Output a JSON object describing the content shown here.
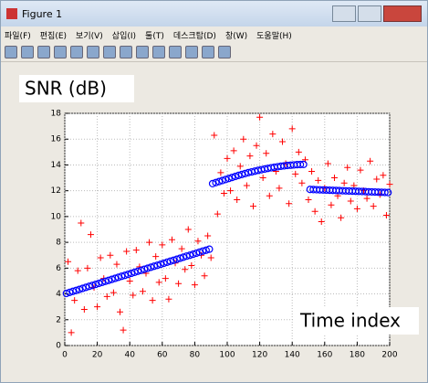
{
  "window": {
    "title": "Figure 1",
    "menu": [
      "파일(F)",
      "편집(E)",
      "보기(V)",
      "삽입(I)",
      "툴(T)",
      "데스크탑(D)",
      "창(W)",
      "도움말(H)"
    ]
  },
  "chart_data": {
    "type": "scatter",
    "annotations": [
      "SNR (dB)",
      "Time index"
    ],
    "xlim": [
      0,
      200
    ],
    "xticks": [
      0,
      20,
      40,
      60,
      80,
      100,
      120,
      140,
      160,
      180,
      200
    ],
    "ylim": [
      0,
      18
    ],
    "yticks": [
      0,
      2,
      4,
      6,
      8,
      10,
      12,
      14,
      16,
      18
    ],
    "grid": true,
    "series": [
      {
        "color": "#ff0000",
        "marker": "+",
        "x": [
          2,
          4,
          6,
          8,
          10,
          12,
          14,
          16,
          18,
          20,
          22,
          24,
          26,
          28,
          30,
          32,
          34,
          36,
          38,
          40,
          42,
          44,
          46,
          48,
          50,
          52,
          54,
          56,
          58,
          60,
          62,
          64,
          66,
          68,
          70,
          72,
          74,
          76,
          78,
          80,
          82,
          84,
          86,
          88,
          90,
          92,
          94,
          96,
          98,
          100,
          102,
          104,
          106,
          108,
          110,
          112,
          114,
          116,
          118,
          120,
          122,
          124,
          126,
          128,
          130,
          132,
          134,
          136,
          138,
          140,
          142,
          144,
          146,
          148,
          150,
          152,
          154,
          156,
          158,
          160,
          162,
          164,
          166,
          168,
          170,
          172,
          174,
          176,
          178,
          180,
          182,
          184,
          186,
          188,
          190,
          192,
          194,
          196,
          198,
          200
        ],
        "values": [
          6.5,
          1.0,
          3.5,
          5.8,
          9.5,
          2.8,
          6.0,
          8.6,
          4.5,
          3.0,
          6.8,
          5.2,
          3.8,
          7.0,
          4.1,
          6.3,
          2.6,
          1.2,
          7.3,
          5.0,
          3.9,
          7.4,
          6.1,
          4.2,
          5.6,
          8.0,
          3.5,
          6.9,
          4.9,
          7.8,
          5.2,
          3.6,
          8.2,
          6.4,
          4.8,
          7.5,
          5.9,
          9.0,
          6.2,
          4.7,
          8.1,
          7.0,
          5.4,
          8.5,
          6.8,
          16.3,
          10.2,
          13.4,
          11.8,
          14.5,
          12.0,
          15.1,
          11.3,
          13.9,
          16.0,
          12.4,
          14.7,
          10.8,
          15.5,
          17.7,
          13.0,
          14.9,
          11.6,
          16.4,
          13.5,
          12.2,
          15.8,
          14.1,
          11.0,
          16.8,
          13.3,
          15.0,
          12.6,
          14.4,
          11.3,
          13.5,
          10.4,
          12.8,
          9.6,
          12.2,
          14.1,
          10.9,
          13.0,
          11.6,
          9.9,
          12.6,
          13.8,
          11.2,
          12.4,
          10.6,
          13.6,
          12.0,
          11.4,
          14.3,
          10.8,
          12.9,
          11.7,
          13.2,
          10.1,
          12.5
        ]
      },
      {
        "color": "#0000ff",
        "marker": "o",
        "x": [
          1,
          3,
          5,
          7,
          9,
          11,
          13,
          15,
          17,
          19,
          21,
          23,
          25,
          27,
          29,
          31,
          33,
          35,
          37,
          39,
          41,
          43,
          45,
          47,
          49,
          51,
          53,
          55,
          57,
          59,
          61,
          63,
          65,
          67,
          69,
          71,
          73,
          75,
          77,
          79,
          81,
          83,
          85,
          87,
          89,
          91,
          93,
          95,
          97,
          99,
          101,
          103,
          105,
          107,
          109,
          111,
          113,
          115,
          117,
          119,
          121,
          123,
          125,
          127,
          129,
          131,
          133,
          135,
          137,
          139,
          141,
          143,
          145,
          147,
          151,
          153,
          155,
          157,
          159,
          161,
          163,
          165,
          167,
          169,
          171,
          173,
          175,
          177,
          179,
          181,
          183,
          185,
          187,
          189,
          191,
          193,
          195,
          197,
          199
        ],
        "values": [
          4.04,
          4.12,
          4.2,
          4.27,
          4.35,
          4.43,
          4.51,
          4.59,
          4.66,
          4.74,
          4.82,
          4.9,
          4.98,
          5.05,
          5.13,
          5.21,
          5.29,
          5.37,
          5.44,
          5.52,
          5.6,
          5.68,
          5.76,
          5.83,
          5.91,
          5.99,
          6.07,
          6.15,
          6.22,
          6.3,
          6.38,
          6.46,
          6.54,
          6.61,
          6.69,
          6.77,
          6.85,
          6.93,
          7.0,
          7.08,
          7.16,
          7.24,
          7.32,
          7.39,
          7.47,
          12.55,
          12.63,
          12.71,
          12.79,
          12.87,
          12.95,
          13.03,
          13.11,
          13.19,
          13.26,
          13.33,
          13.4,
          13.46,
          13.52,
          13.58,
          13.63,
          13.68,
          13.73,
          13.78,
          13.82,
          13.86,
          13.9,
          13.93,
          13.96,
          13.98,
          14.0,
          14.02,
          14.03,
          14.04,
          12.1,
          12.09,
          12.08,
          12.07,
          12.06,
          12.05,
          12.04,
          12.03,
          12.02,
          12.01,
          12.0,
          11.99,
          11.98,
          11.97,
          11.96,
          11.95,
          11.94,
          11.93,
          11.92,
          11.91,
          11.9,
          11.89,
          11.88,
          11.87,
          11.86
        ]
      }
    ]
  }
}
